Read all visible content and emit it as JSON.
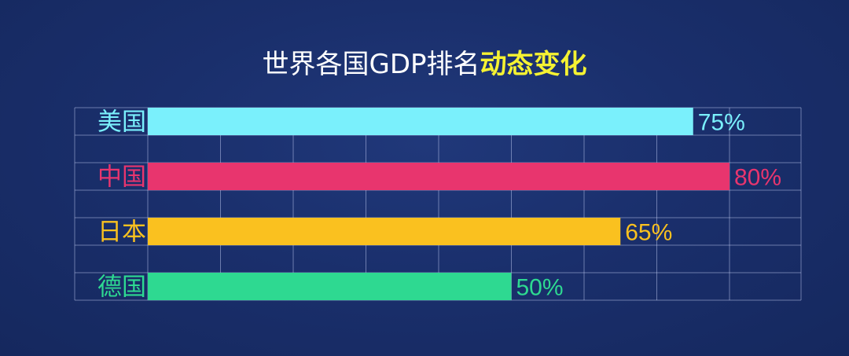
{
  "chart_data": {
    "type": "bar",
    "orientation": "horizontal",
    "title": "世界各国GDP排名",
    "title_highlight": "动态变化",
    "categories": [
      "美国",
      "中国",
      "日本",
      "德国"
    ],
    "values": [
      75,
      80,
      65,
      50
    ],
    "value_labels": [
      "75%",
      "80%",
      "65%",
      "50%"
    ],
    "colors": [
      "#7af0fc",
      "#e8356e",
      "#fac11f",
      "#2ed991"
    ],
    "xlim": [
      0,
      100
    ],
    "grid": true,
    "legend": "none"
  }
}
